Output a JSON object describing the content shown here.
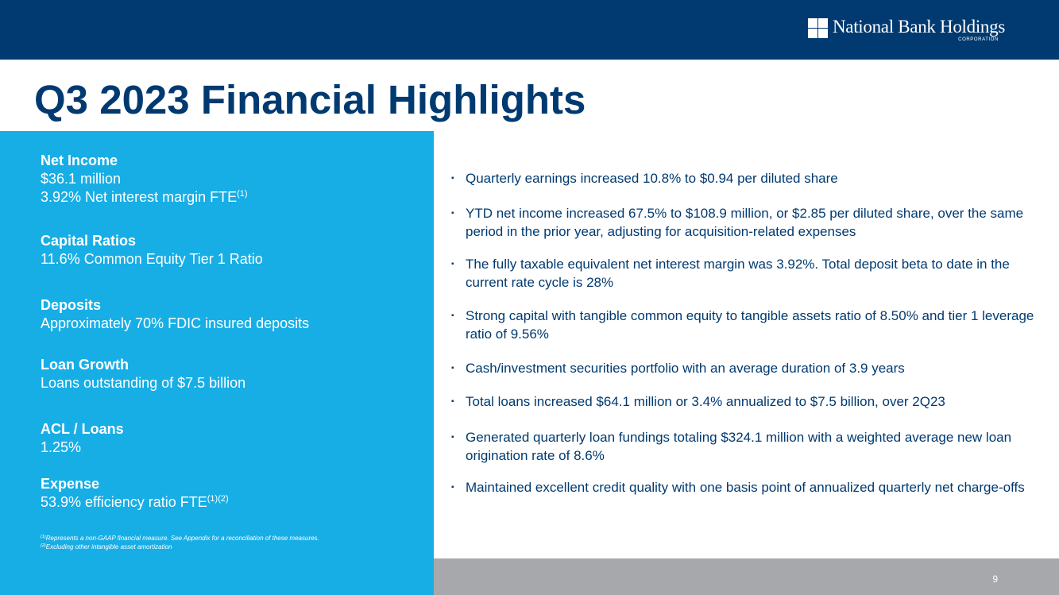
{
  "header": {
    "logo_name": "National Bank Holdings",
    "logo_sub": "CORPORATION"
  },
  "title": "Q3 2023 Financial Highlights",
  "stats": [
    {
      "head": "Net Income",
      "lines": [
        "$36.1 million",
        "3.92% Net interest margin FTE"
      ],
      "sup": "(1)"
    },
    {
      "head": "Capital Ratios",
      "lines": [
        "11.6% Common Equity Tier 1 Ratio"
      ]
    },
    {
      "head": "Deposits",
      "lines": [
        "Approximately 70% FDIC insured deposits"
      ]
    },
    {
      "head": "Loan Growth",
      "lines": [
        "Loans outstanding of $7.5 billion"
      ]
    },
    {
      "head": "ACL / Loans",
      "lines": [
        "1.25%"
      ]
    },
    {
      "head": "Expense",
      "lines": [
        "53.9% efficiency ratio FTE"
      ],
      "sup": "(1)(2)"
    }
  ],
  "footnotes": [
    {
      "mark": "(1)",
      "text": "Represents a non-GAAP financial measure. See Appendix for a reconciliation of these measures."
    },
    {
      "mark": "(2)",
      "text": "Excluding other intangible asset amortization"
    }
  ],
  "bullets": [
    "Quarterly earnings increased 10.8% to $0.94 per diluted share",
    "YTD net income increased 67.5% to $108.9 million, or $2.85 per diluted share, over the same period in the prior year, adjusting for acquisition-related expenses",
    "The fully taxable equivalent net interest margin was 3.92%. Total deposit beta to date in the current rate cycle is 28%",
    "Strong capital with tangible common equity to tangible assets ratio of 8.50% and tier 1 leverage ratio of 9.56%",
    "Cash/investment securities portfolio with an average duration of 3.9 years",
    "Total loans increased $64.1 million or 3.4% annualized to $7.5 billion, over 2Q23",
    "Generated quarterly loan fundings totaling $324.1 million with a weighted average new loan origination rate of 8.6%",
    "Maintained excellent credit quality with one basis point of annualized quarterly net charge-offs"
  ],
  "bullet_symbol": "▪",
  "page_number": "9",
  "colors": {
    "navy": "#003a70",
    "sky": "#17aee6",
    "gray": "#a6a8ab"
  }
}
